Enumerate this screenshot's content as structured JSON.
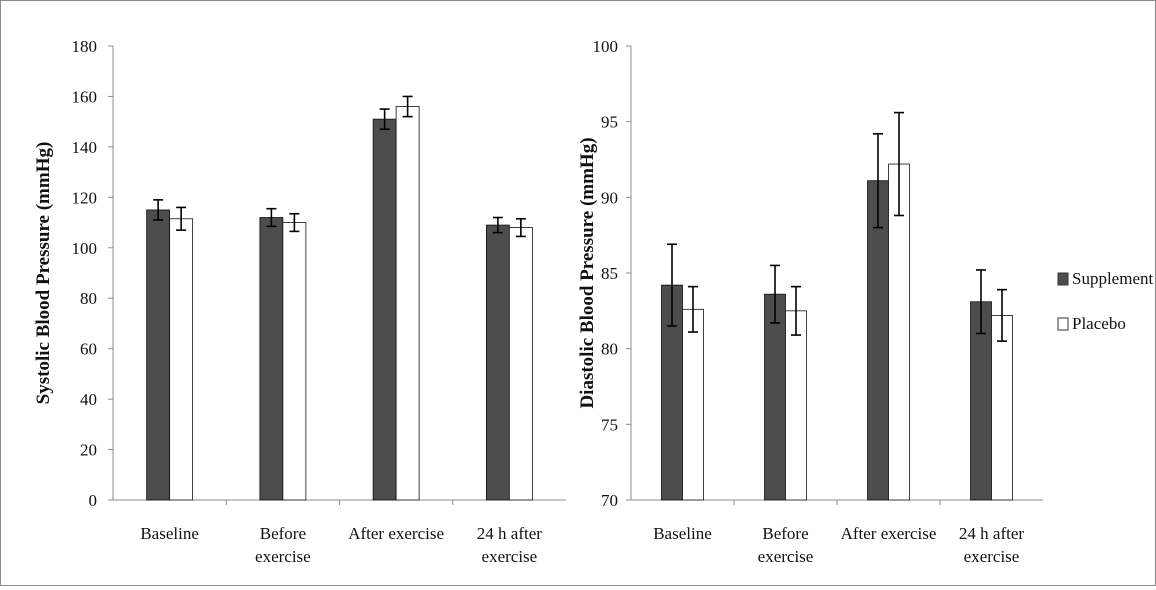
{
  "colors": {
    "supplement": "#4d4d4d",
    "placebo": "#ffffff",
    "outline": "#111111",
    "axis": "#8c8c8c"
  },
  "legend": {
    "placement": "right",
    "items": [
      "Supplement",
      "Placebo"
    ]
  },
  "chart_data": [
    {
      "type": "bar",
      "ylabel": "Systolic Blood Pressure (mmHg)",
      "xlabel": "",
      "ylim": [
        0,
        180
      ],
      "yticks": [
        0,
        20,
        40,
        60,
        80,
        100,
        120,
        140,
        160,
        180
      ],
      "grid": false,
      "categories": [
        [
          "Baseline"
        ],
        [
          "Before",
          "exercise"
        ],
        [
          "After exercise"
        ],
        [
          "24 h after",
          "exercise"
        ]
      ],
      "series": [
        {
          "name": "Supplement",
          "values": [
            115,
            112,
            151,
            109
          ],
          "error": [
            4,
            3.5,
            4,
            3
          ]
        },
        {
          "name": "Placebo",
          "values": [
            111.5,
            110,
            156,
            108
          ],
          "error": [
            4.5,
            3.5,
            4,
            3.5
          ]
        }
      ]
    },
    {
      "type": "bar",
      "ylabel": "Diastolic Blood Pressure (mmHg)",
      "xlabel": "",
      "ylim": [
        70,
        100
      ],
      "yticks": [
        70,
        75,
        80,
        85,
        90,
        95,
        100
      ],
      "grid": false,
      "categories": [
        [
          "Baseline"
        ],
        [
          "Before",
          "exercise"
        ],
        [
          "After exercise"
        ],
        [
          "24 h after",
          "exercise"
        ]
      ],
      "series": [
        {
          "name": "Supplement",
          "values": [
            84.2,
            83.6,
            91.1,
            83.1
          ],
          "error": [
            2.7,
            1.9,
            3.1,
            2.1
          ]
        },
        {
          "name": "Placebo",
          "values": [
            82.6,
            82.5,
            92.2,
            82.2
          ],
          "error": [
            1.5,
            1.6,
            3.4,
            1.7
          ]
        }
      ]
    }
  ]
}
